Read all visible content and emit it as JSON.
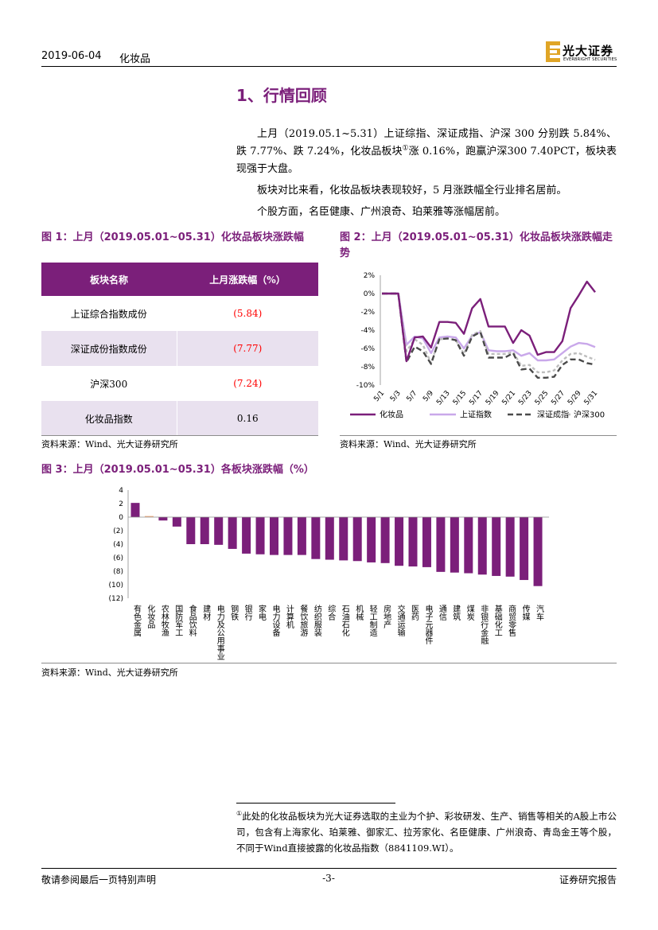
{
  "header": {
    "date": "2019-06-04",
    "sector": "化妆品",
    "logo_cn": "光大证券",
    "logo_en": "EVERBRIGHT SECURITIES"
  },
  "section": {
    "title": "1、行情回顾"
  },
  "paragraphs": [
    {
      "before": "上月（2019.05.1~5.31）上证综指、深证成指、沪深 300 分别跌 5.84%、跌 7.77%、跌 7.24%，化妆品板块",
      "sup": "①",
      "after": "涨 0.16%，跑赢沪深300 7.40PCT，板块表现强于大盘。"
    },
    {
      "text": "板块对比来看，化妆品板块表现较好，5 月涨跌幅全行业排名居前。"
    },
    {
      "text": "个股方面，名臣健康、广州浪奇、珀莱雅等涨幅居前。"
    }
  ],
  "figure1": {
    "caption": "图 1：上月（2019.05.01~05.31）化妆品板块涨跌幅",
    "table": {
      "headers": [
        "板块名称",
        "上月涨跌幅（%）"
      ],
      "rows": [
        {
          "name": "上证综合指数成份",
          "value": "(5.84)"
        },
        {
          "name": "深证成份指数成份",
          "value": "(7.77)"
        },
        {
          "name": "沪深300",
          "value": "(7.24)"
        },
        {
          "name": "化妆品指数",
          "value": "0.16"
        }
      ]
    },
    "source": "资料来源：Wind、光大证券研究所"
  },
  "figure2": {
    "caption": "图 2：上月（2019.05.01~05.31）化妆品板块涨跌幅走势",
    "source": "资料来源：Wind、光大证券研究所"
  },
  "figure3": {
    "caption": "图 3：上月（2019.05.01~05.31）各板块涨跌幅（%）",
    "source": "资料来源：Wind、光大证券研究所"
  },
  "chart_data": [
    {
      "type": "line",
      "ylim": [
        -10,
        2
      ],
      "y_ticks": [
        2,
        0,
        -2,
        -4,
        -6,
        -8,
        -10
      ],
      "x_tick_labels": [
        "5/1",
        "5/3",
        "5/7",
        "5/9",
        "5/13",
        "5/15",
        "5/17",
        "5/19",
        "5/21",
        "5/23",
        "5/25",
        "5/27",
        "5/29",
        "5/31"
      ],
      "x_tick_every": 2,
      "legend_position": "bottom",
      "series": [
        {
          "name": "化妆品",
          "color": "#7B1F7A",
          "values": [
            0,
            0,
            0,
            -7.4,
            -4.8,
            -4.7,
            -5.9,
            -3.1,
            -3.1,
            -3.2,
            -4.4,
            -1.6,
            -0.6,
            -3.6,
            -3.6,
            -3.6,
            -5.4,
            -4.0,
            -4.6,
            -6.7,
            -6.4,
            -6.4,
            -5.2,
            -1.6,
            -0.2,
            1.3,
            0.16
          ]
        },
        {
          "name": "上证指数",
          "color": "#C9A8EA",
          "values": [
            0,
            0,
            0,
            -5.6,
            -4.7,
            -4.9,
            -6.5,
            -4.8,
            -4.7,
            -4.8,
            -6.0,
            -4.6,
            -4.2,
            -6.2,
            -6.3,
            -6.3,
            -6.2,
            -6.8,
            -6.5,
            -7.3,
            -7.3,
            -7.2,
            -6.5,
            -5.8,
            -5.4,
            -5.5,
            -5.84
          ]
        },
        {
          "name": "深证成指",
          "color": "#4A4A4A",
          "values": [
            0,
            0,
            0,
            -7.5,
            -5.8,
            -6.3,
            -7.7,
            -5.0,
            -4.9,
            -5.1,
            -6.8,
            -4.7,
            -4.2,
            -7.0,
            -7.0,
            -7.0,
            -6.5,
            -8.3,
            -8.2,
            -9.2,
            -9.2,
            -9.1,
            -7.8,
            -7.2,
            -7.2,
            -7.6,
            -7.77
          ]
        },
        {
          "name": "沪深300",
          "color": "#BDBDBD",
          "values": [
            0,
            0,
            0,
            -6.3,
            -5.0,
            -5.6,
            -7.6,
            -5.0,
            -4.9,
            -5.1,
            -6.6,
            -4.5,
            -4.1,
            -6.6,
            -6.6,
            -6.6,
            -6.4,
            -7.9,
            -7.8,
            -8.6,
            -8.6,
            -8.4,
            -7.3,
            -6.6,
            -6.5,
            -6.9,
            -7.24
          ]
        }
      ]
    },
    {
      "type": "bar",
      "ylim": [
        -12,
        4
      ],
      "y_ticks": [
        4,
        2,
        0,
        -2,
        -4,
        -6,
        -8,
        -10,
        -12
      ],
      "categories": [
        "有色金属",
        "化妆品",
        "农林牧渔",
        "国防军工",
        "食品饮料",
        "建材",
        "电力及公用事业",
        "钢铁",
        "银行",
        "家电",
        "电力设备",
        "计算机",
        "餐饮旅游",
        "纺织服装",
        "综合",
        "石油石化",
        "机械",
        "轻工制造",
        "房地产",
        "交通运输",
        "医药",
        "电子元器件",
        "通信",
        "建筑",
        "煤炭",
        "非银行金融",
        "基础化工",
        "商贸零售",
        "传媒",
        "汽车"
      ],
      "values": [
        2.1,
        0.16,
        -0.5,
        -1.4,
        -4.0,
        -4.0,
        -4.1,
        -4.7,
        -5.4,
        -5.5,
        -5.6,
        -5.6,
        -5.6,
        -6.2,
        -6.3,
        -6.4,
        -6.5,
        -6.7,
        -6.8,
        -7.2,
        -7.3,
        -7.4,
        -8.1,
        -8.2,
        -8.3,
        -8.5,
        -8.7,
        -8.8,
        -9.3,
        -10.2
      ],
      "bar_color": "#7B1F7A",
      "highlight": {
        "category": "化妆品",
        "color": "#F4B183"
      }
    }
  ],
  "footnote": {
    "marker": "①",
    "text": "此处的化妆品板块为光大证券选取的主业为个护、彩妆研发、生产、销售等相关的A股上市公司，包含有上海家化、珀莱雅、御家汇、拉芳家化、名臣健康、广州浪奇、青岛金王等个股，不同于Wind直接披露的化妆品指数（8841109.WI）。"
  },
  "footer": {
    "disclaimer": "敬请参阅最后一页特别声明",
    "page": "-3-",
    "report_type": "证券研究报告"
  },
  "colors": {
    "brand": "#7B1F7A",
    "negative": "#FF0000",
    "row_shade": "#E9E1EF",
    "logo_gold": "#E0A526"
  }
}
